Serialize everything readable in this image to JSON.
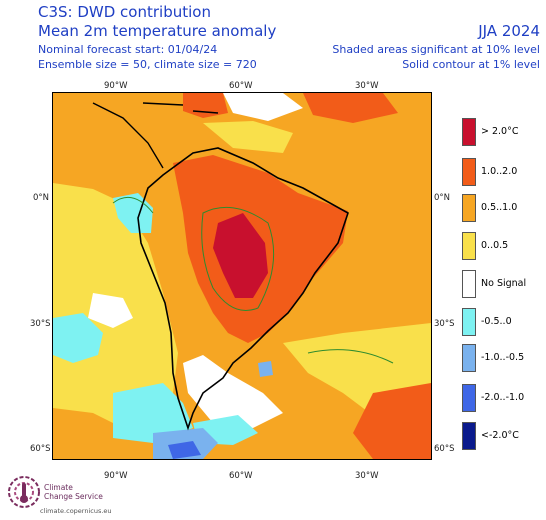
{
  "header": {
    "title": "C3S: DWD contribution",
    "subtitle": "Mean 2m temperature anomaly",
    "forecast_start": "Nominal forecast start: 01/04/24",
    "ensemble": "Ensemble size = 50, climate size = 720",
    "season": "JJA 2024",
    "shaded_note": "Shaded areas significant at 10% level",
    "contour_note": "Solid contour at 1% level"
  },
  "axes": {
    "top": [
      "90°W",
      "60°W",
      "30°W"
    ],
    "bottom": [
      "90°W",
      "60°W",
      "30°W"
    ],
    "left": [
      "0°N",
      "30°S",
      "60°S"
    ],
    "right": [
      "0°N",
      "30°S",
      "60°S"
    ]
  },
  "legend": [
    {
      "label": "> 2.0°C",
      "color": "#c8102e"
    },
    {
      "label": "1.0..2.0",
      "color": "#f25c19"
    },
    {
      "label": "0.5..1.0",
      "color": "#f6a623"
    },
    {
      "label": "0..0.5",
      "color": "#f9e04b"
    },
    {
      "label": "No Signal",
      "color": "#ffffff"
    },
    {
      "label": "-0.5..0",
      "color": "#7ef2f2"
    },
    {
      "label": "-1.0..-0.5",
      "color": "#7ab2ee"
    },
    {
      "label": "-2.0..-1.0",
      "color": "#3f67e6"
    },
    {
      "label": "<-2.0°C",
      "color": "#0a1a8c"
    }
  ],
  "logo": {
    "line1": "Climate",
    "line2": "Change Service",
    "url": "climate.copernicus.eu"
  }
}
